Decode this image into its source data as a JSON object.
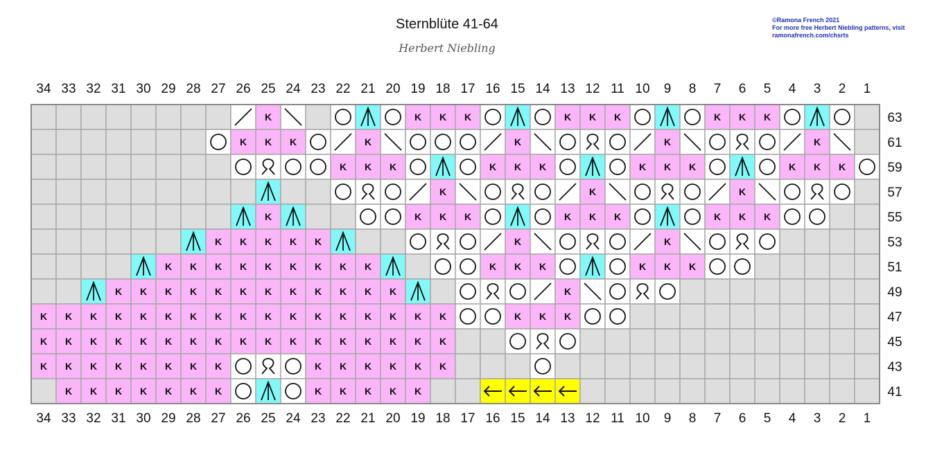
{
  "title": "Sternblüte 41-64",
  "author": "Herbert Niebling",
  "credit": [
    "©Ramona French 2021",
    "For more free Herbert Niebling patterns, visit",
    "ramonafrench.com/chsrts"
  ],
  "colors": {
    "nostitch": "#dedede",
    "knit": "#fbb6f9",
    "dec": "#82f9f9",
    "arrow": "#ffff00",
    "plain": "#ffffff",
    "grid": "#a8a8a8"
  },
  "legend_codes": {
    "x": "no stitch",
    "k": "knit",
    "o": "yarn over",
    "d": "centered double decrease",
    "q": "twisted yarn over",
    "/": "right-leaning decrease",
    "\\": "left-leaning decrease",
    "a": "arrow (repeat)"
  },
  "col_labels": [
    "34",
    "33",
    "32",
    "31",
    "30",
    "29",
    "28",
    "27",
    "26",
    "25",
    "24",
    "23",
    "22",
    "21",
    "20",
    "19",
    "18",
    "17",
    "16",
    "15",
    "14",
    "13",
    "12",
    "11",
    "10",
    "9",
    "8",
    "7",
    "6",
    "5",
    "4",
    "3",
    "2",
    "1"
  ],
  "row_labels": [
    "63",
    "61",
    "59",
    "57",
    "55",
    "53",
    "51",
    "49",
    "47",
    "45",
    "43",
    "41"
  ],
  "rows": [
    "xxxxxxxx/k\\xodoKKKodoKKKodoKKKodox",
    "xxxxxxxoKKKo/K\\ooo/K\\oqo/K\\oqo/K\\x",
    "xxxxxxxxoqooKKKodoKKKodoKKKodoKKKo",
    "xxxxxxxxxdxxoqo/K\\oqo/K\\oqo/K\\oqox",
    "xxxxxxxxdKdxxooKKKodoKKKodoKKKooxx",
    "xxxxxxdKKKKKdxxoqo/K\\oqo/K\\oqoxxxx",
    "xxxxdKKKKKKKKKdxooKKKodoKKKooxxxxx",
    "xxdKKKKKKKKKKKKdxoqo/K\\oqoxxxxxxxx",
    "KKKKKKKKKKKKKKKKKooKKKooxxxxxxxxxx",
    "KKKKKKKKKKKKKKKKKxxoqoxxxxxxxxxxxx",
    "KKKKKKKKoqoKKKKKKxxxoxxxxxxxxxxxxx",
    "xKKKKKKKodoKKKKKxxaaaaxxxxxxxxxxxx"
  ]
}
